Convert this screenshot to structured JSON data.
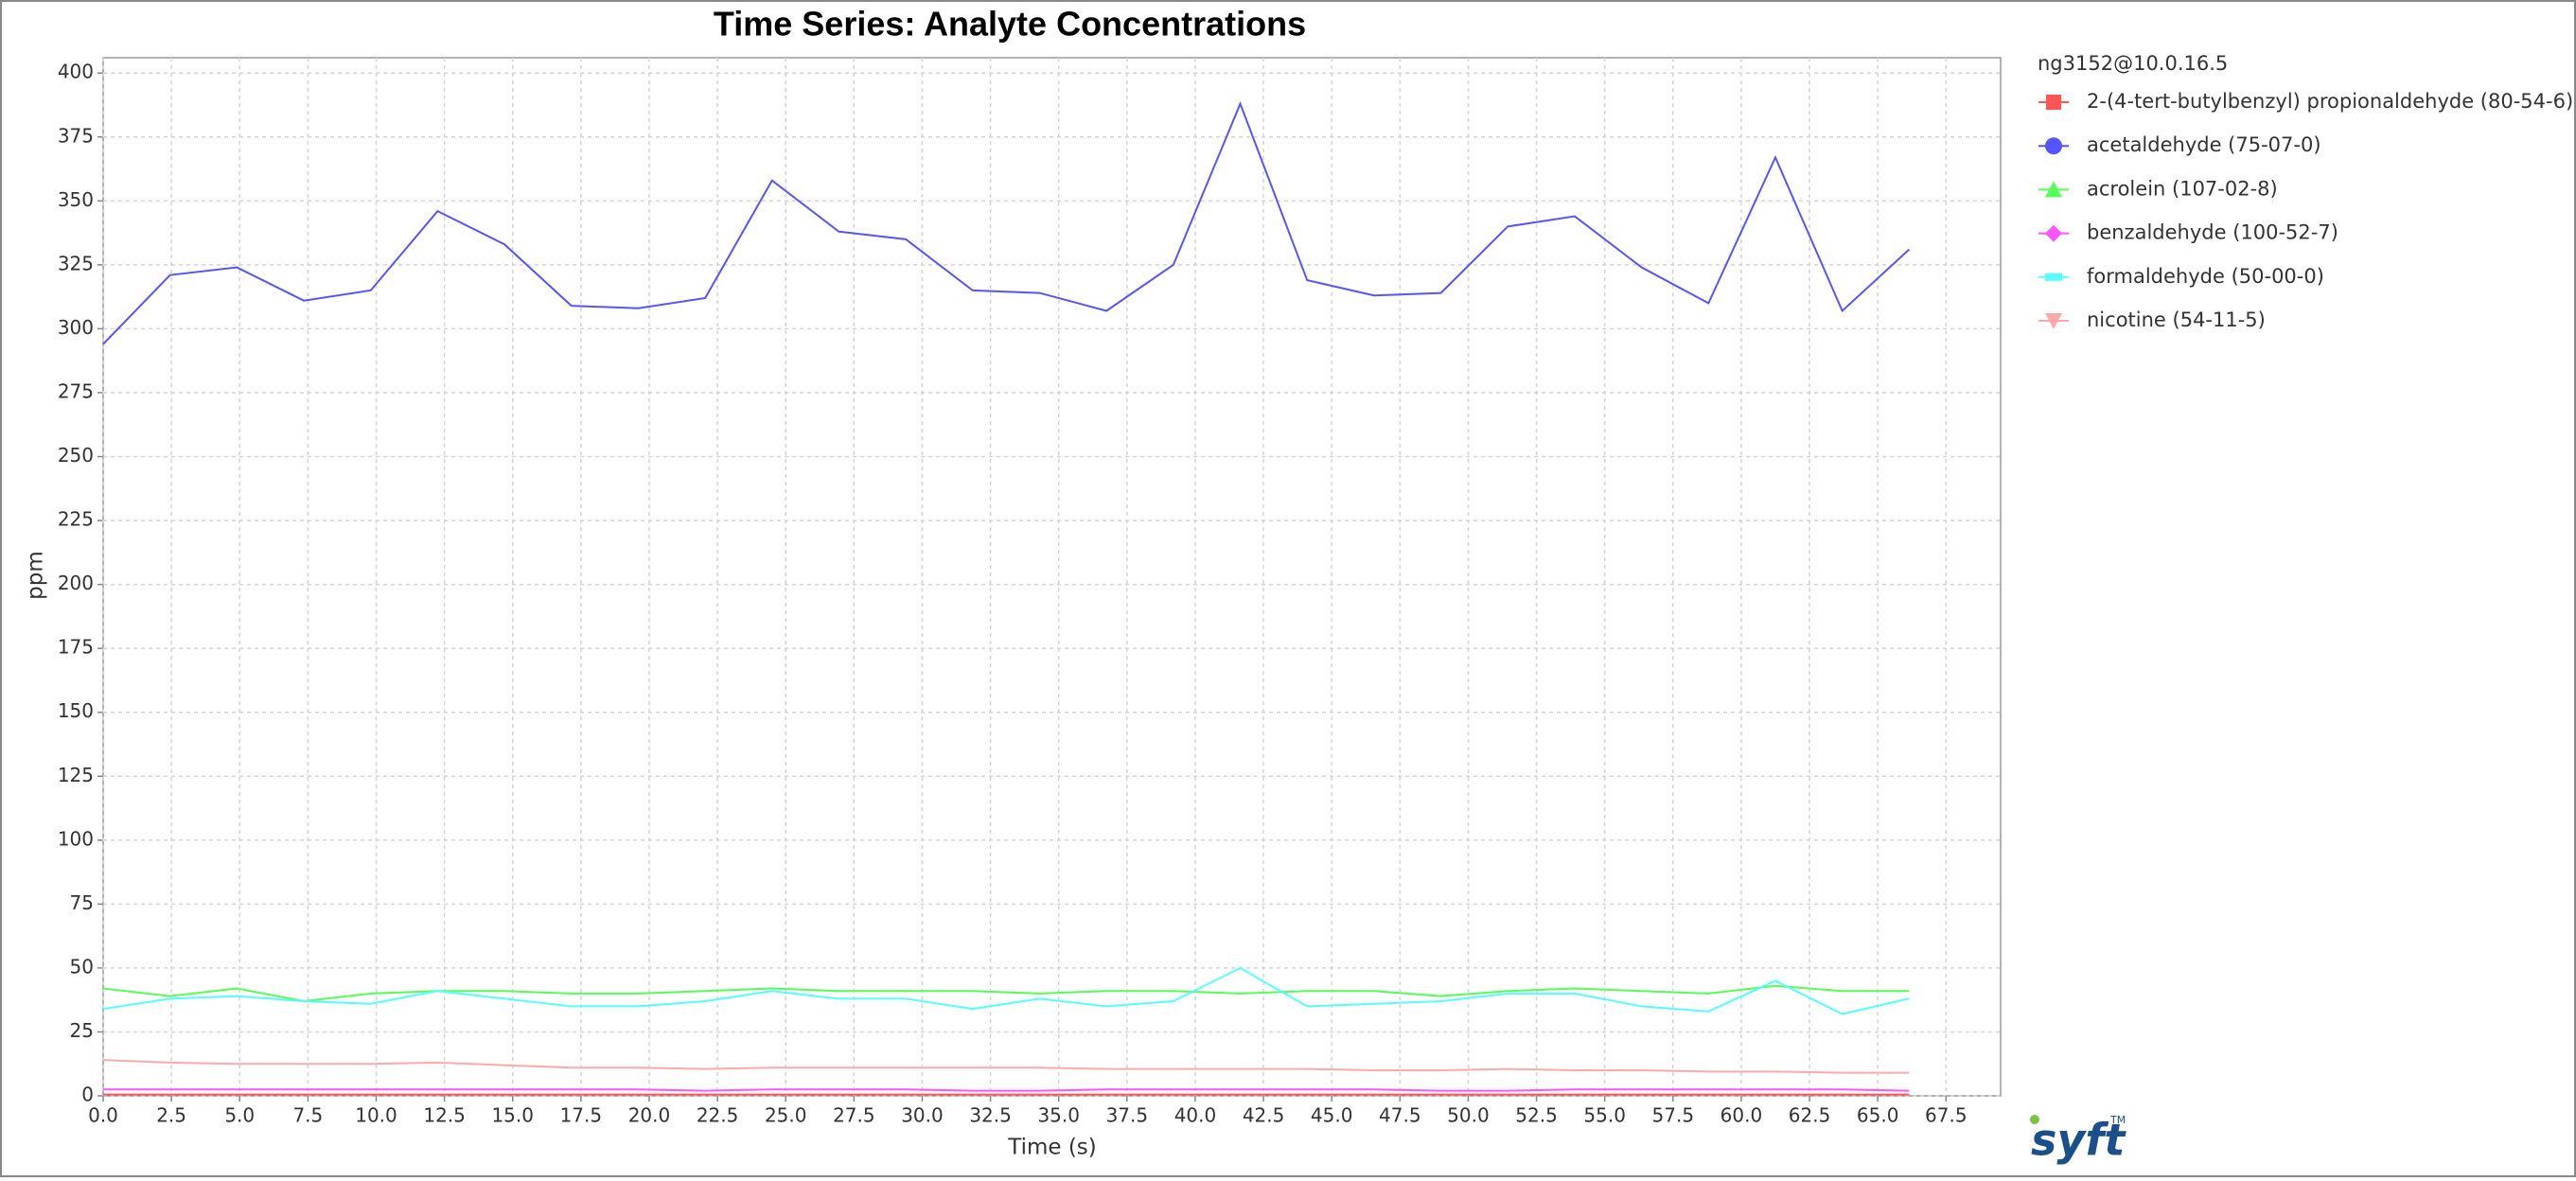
{
  "chart_data": {
    "type": "line",
    "title": "Time Series: Analyte Concentrations",
    "xlabel": "Time (s)",
    "ylabel": "ppm",
    "legend_title": "ng3152@10.0.16.5",
    "logo": "syft",
    "logo_mark": "TM",
    "grid": true,
    "x": [
      0,
      2.45,
      4.9,
      7.35,
      9.8,
      12.25,
      14.7,
      17.15,
      19.6,
      22.05,
      24.5,
      26.95,
      29.4,
      31.85,
      34.3,
      36.75,
      39.2,
      41.65,
      44.1,
      46.55,
      49,
      51.45,
      53.9,
      56.35,
      58.8,
      61.25,
      63.7,
      66.15
    ],
    "series": [
      {
        "name": "2-(4-tert-butylbenzyl) propionaldehyde (80-54-6)",
        "color": "#ff5555",
        "values": [
          0.5,
          0.5,
          0.5,
          0.5,
          0.5,
          0.5,
          0.5,
          0.5,
          0.5,
          0.5,
          0.5,
          0.5,
          0.5,
          0.5,
          0.5,
          0.5,
          0.5,
          0.5,
          0.5,
          0.5,
          0.5,
          0.5,
          0.5,
          0.5,
          0.5,
          0.5,
          0.5,
          0.5
        ]
      },
      {
        "name": "acetaldehyde (75-07-0)",
        "color": "#5555ff",
        "values": [
          294,
          321,
          324,
          311,
          315,
          346,
          333,
          309,
          308,
          312,
          358,
          338,
          335,
          315,
          314,
          307,
          325,
          388,
          319,
          313,
          314,
          340,
          344,
          324,
          310,
          367,
          307,
          331
        ]
      },
      {
        "name": "acrolein (107-02-8)",
        "color": "#55ff55",
        "values": [
          42,
          39,
          42,
          37,
          40,
          41,
          41,
          40,
          40,
          41,
          42,
          41,
          41,
          41,
          40,
          41,
          41,
          40,
          41,
          41,
          39,
          41,
          42,
          41,
          40,
          43,
          41,
          41
        ]
      },
      {
        "name": "benzaldehyde (100-52-7)",
        "color": "#ff55ff",
        "values": [
          2.5,
          2.5,
          2.5,
          2.5,
          2.5,
          2.5,
          2.5,
          2.5,
          2.5,
          2.0,
          2.5,
          2.5,
          2.5,
          2.0,
          2.0,
          2.5,
          2.5,
          2.5,
          2.5,
          2.5,
          2.0,
          2.0,
          2.5,
          2.5,
          2.5,
          2.5,
          2.5,
          2.0
        ]
      },
      {
        "name": "formaldehyde (50-00-0)",
        "color": "#55ffff",
        "values": [
          34,
          38,
          39,
          37,
          36,
          41,
          38,
          35,
          35,
          37,
          41,
          38,
          38,
          34,
          38,
          35,
          37,
          50,
          35,
          36,
          37,
          40,
          40,
          35,
          33,
          45,
          32,
          38
        ]
      },
      {
        "name": "nicotine (54-11-5)",
        "color": "#ffaaaa",
        "values": [
          14,
          13,
          12.5,
          12.5,
          12.5,
          13,
          12,
          11,
          11,
          10.5,
          11,
          11,
          11,
          11,
          11,
          10.5,
          10.5,
          10.5,
          10.5,
          10,
          10,
          10.5,
          10,
          10,
          9.5,
          9.5,
          9,
          9
        ]
      }
    ],
    "xlim": [
      0,
      69.5
    ],
    "ylim": [
      0,
      406
    ],
    "xticks": [
      {
        "value": 0,
        "label": "0.0"
      },
      2.5,
      {
        "value": 5,
        "label": "5.0"
      },
      7.5,
      {
        "value": 10,
        "label": "10.0"
      },
      12.5,
      {
        "value": 15,
        "label": "15.0"
      },
      17.5,
      {
        "value": 20,
        "label": "20.0"
      },
      22.5,
      {
        "value": 25,
        "label": "25.0"
      },
      27.5,
      {
        "value": 30,
        "label": "30.0"
      },
      32.5,
      {
        "value": 35,
        "label": "35.0"
      },
      37.5,
      {
        "value": 40,
        "label": "40.0"
      },
      42.5,
      {
        "value": 45,
        "label": "45.0"
      },
      47.5,
      {
        "value": 50,
        "label": "50.0"
      },
      52.5,
      {
        "value": 55,
        "label": "55.0"
      },
      57.5,
      {
        "value": 60,
        "label": "60.0"
      },
      62.5,
      {
        "value": 65,
        "label": "65.0"
      },
      67.5
    ],
    "yticks": [
      0,
      25,
      50,
      75,
      100,
      125,
      150,
      175,
      200,
      225,
      250,
      275,
      300,
      325,
      350,
      375,
      400
    ]
  }
}
